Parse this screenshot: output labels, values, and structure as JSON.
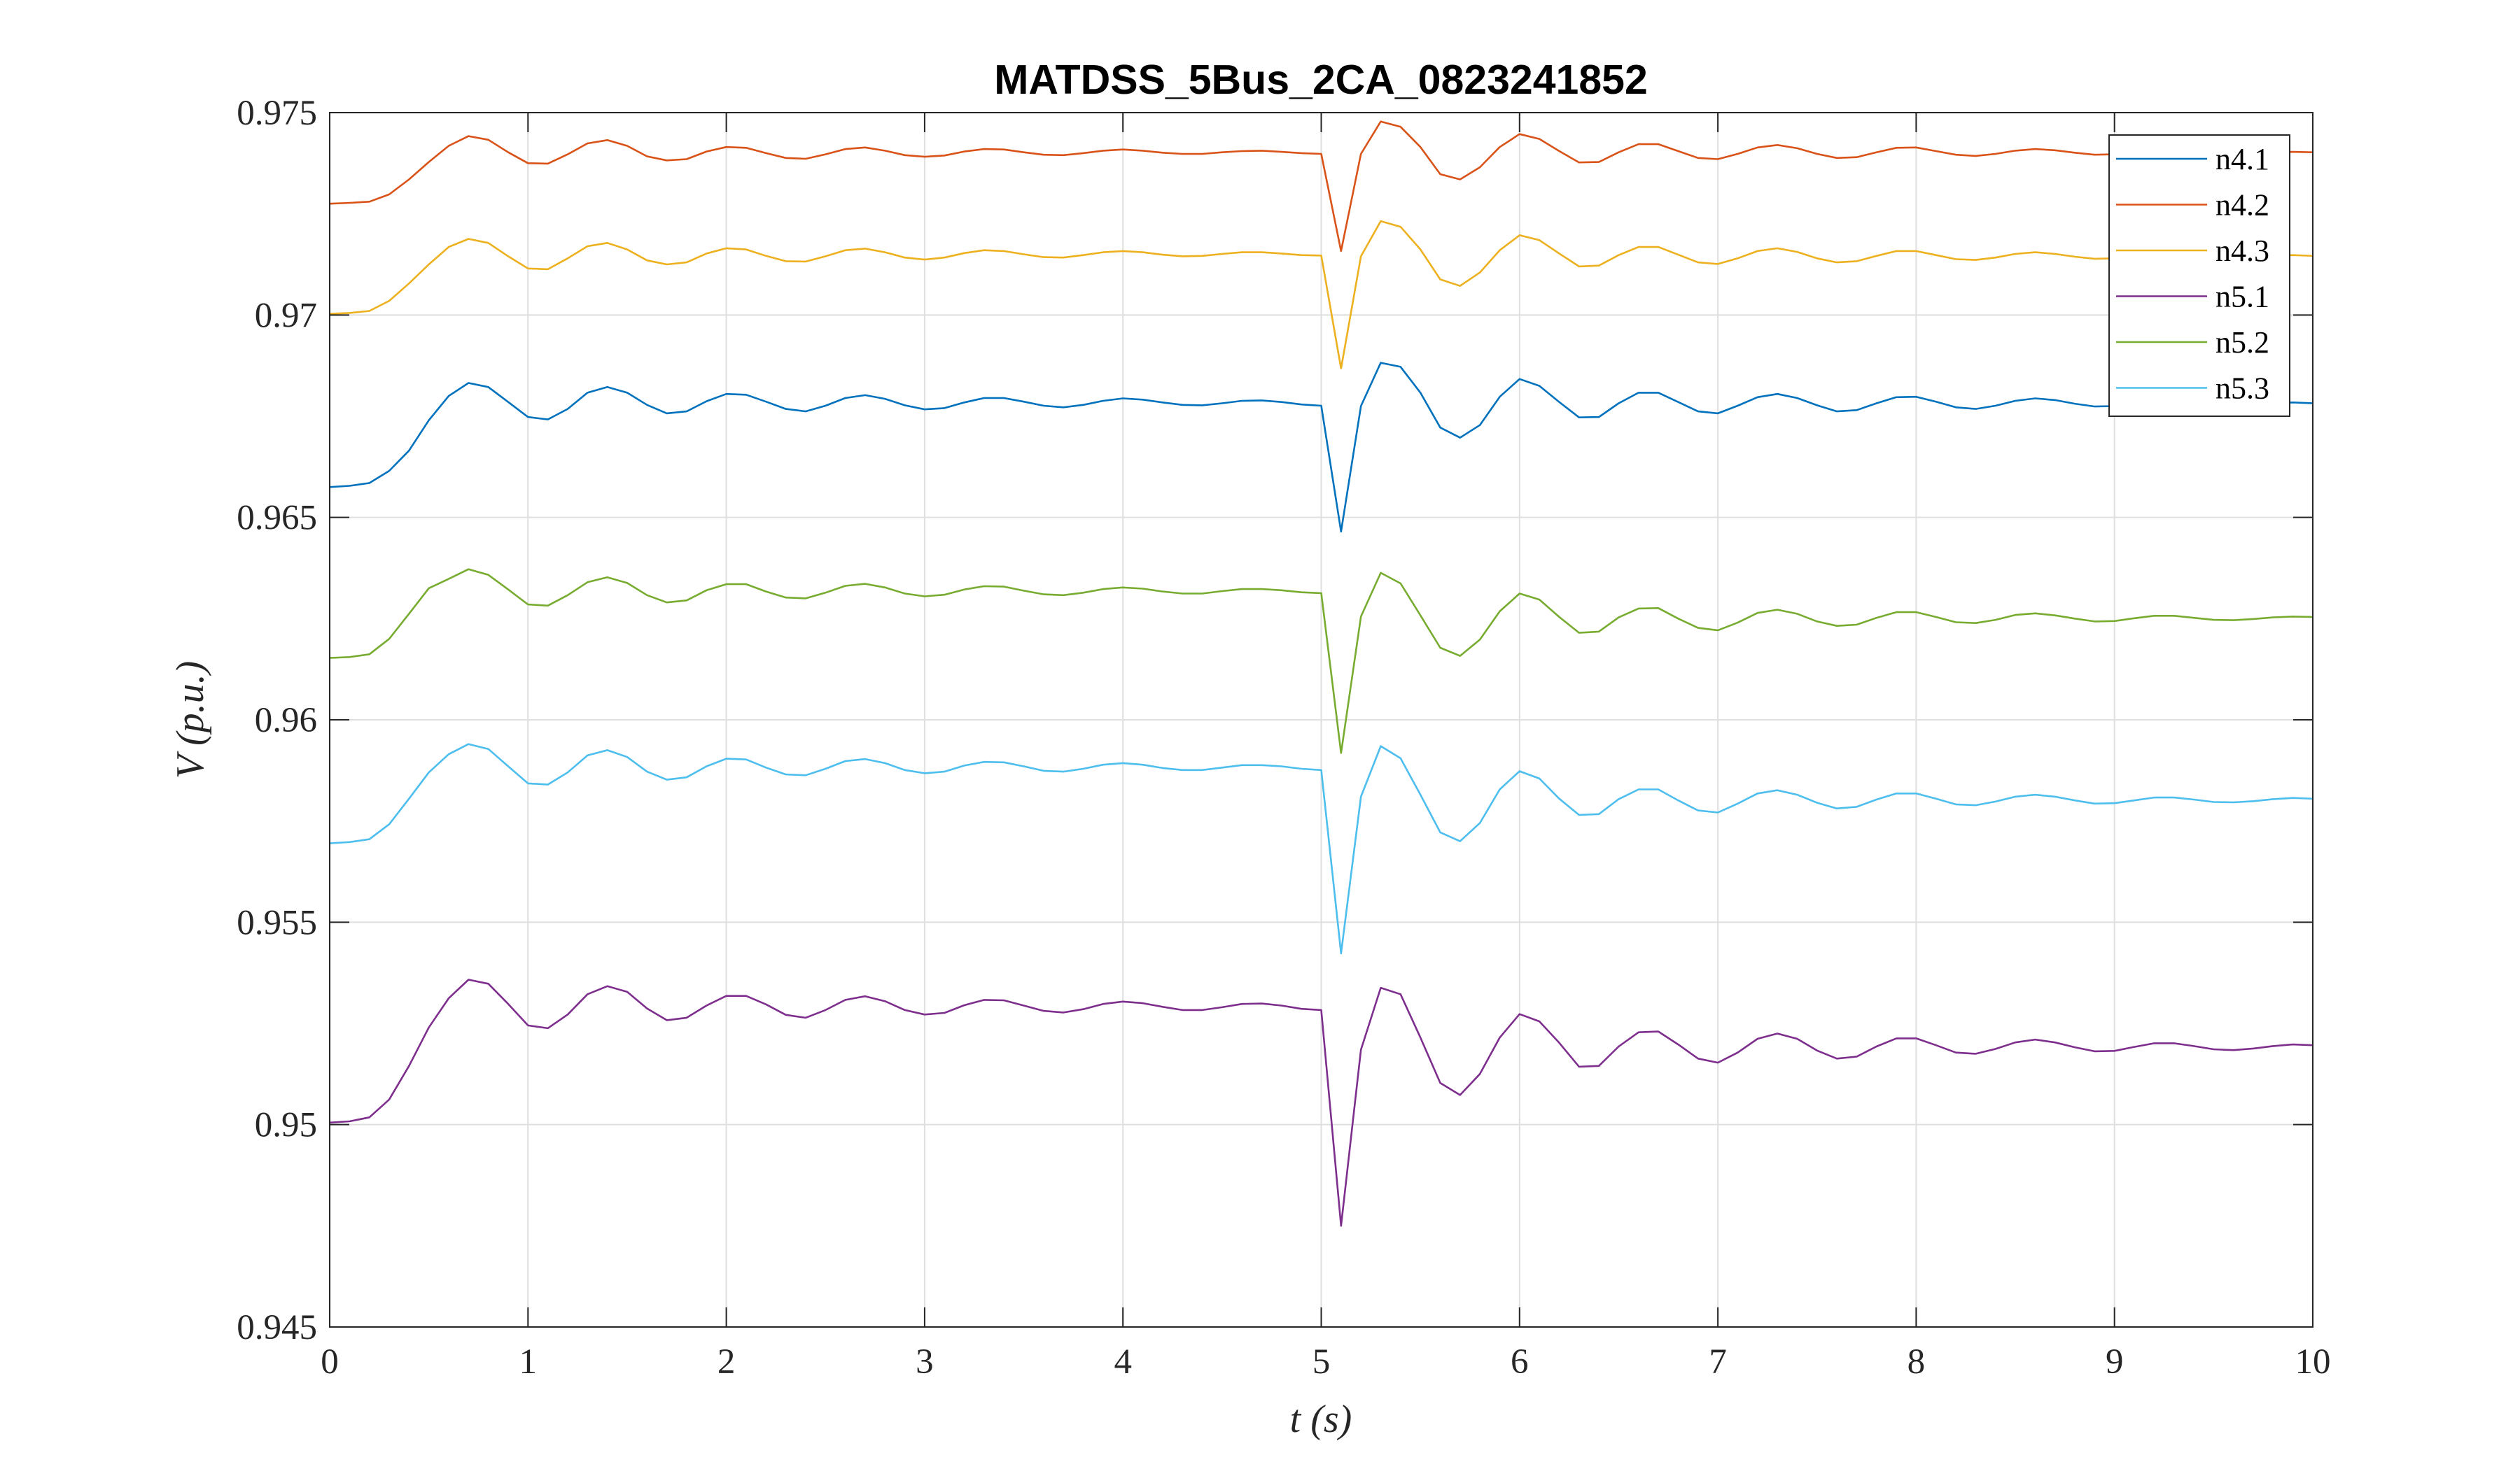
{
  "chart_data": {
    "type": "line",
    "title": "MATDSS_5Bus_2CA_0823241852",
    "xlabel": "t (s)",
    "ylabel": "V (p.u.)",
    "xlim": [
      0,
      10
    ],
    "ylim": [
      0.945,
      0.975
    ],
    "xticks": [
      "0",
      "1",
      "2",
      "3",
      "4",
      "5",
      "6",
      "7",
      "8",
      "9",
      "10"
    ],
    "yticks": [
      "0.945",
      "0.95",
      "0.955",
      "0.96",
      "0.965",
      "0.97",
      "0.975"
    ],
    "grid": true,
    "legend_position": "top-right",
    "x": [
      0,
      0.1,
      0.2,
      0.3,
      0.4,
      0.5,
      0.6,
      0.7,
      0.8,
      0.9,
      1.0,
      1.1,
      1.2,
      1.3,
      1.4,
      1.5,
      1.6,
      1.7,
      1.8,
      1.9,
      2.0,
      2.1,
      2.2,
      2.3,
      2.4,
      2.5,
      2.6,
      2.7,
      2.8,
      2.9,
      3.0,
      3.1,
      3.2,
      3.3,
      3.4,
      3.5,
      3.6,
      3.7,
      3.8,
      3.9,
      4.0,
      4.1,
      4.2,
      4.3,
      4.4,
      4.5,
      4.6,
      4.7,
      4.8,
      4.9,
      5.0,
      5.1,
      5.2,
      5.3,
      5.4,
      5.5,
      5.6,
      5.7,
      5.8,
      5.9,
      6.0,
      6.1,
      6.2,
      6.3,
      6.4,
      6.5,
      6.6,
      6.7,
      6.8,
      6.9,
      7.0,
      7.1,
      7.2,
      7.3,
      7.4,
      7.5,
      7.6,
      7.7,
      7.8,
      7.9,
      8.0,
      8.1,
      8.2,
      8.3,
      8.4,
      8.5,
      8.6,
      8.7,
      8.8,
      8.9,
      9.0,
      9.1,
      9.2,
      9.3,
      9.4,
      9.5,
      9.6,
      9.7,
      9.8,
      9.9,
      10.0
    ],
    "series": [
      {
        "name": "n4.1",
        "color": "#0072BD",
        "values": [
          0.96575,
          0.96578,
          0.96585,
          0.96615,
          0.96665,
          0.9674,
          0.968,
          0.96832,
          0.96822,
          0.96785,
          0.96748,
          0.96742,
          0.96768,
          0.96808,
          0.96822,
          0.96808,
          0.96778,
          0.96757,
          0.96762,
          0.96787,
          0.96805,
          0.96803,
          0.96786,
          0.96768,
          0.96762,
          0.96776,
          0.96795,
          0.96802,
          0.96793,
          0.96777,
          0.96767,
          0.9677,
          0.96784,
          0.96795,
          0.96795,
          0.96786,
          0.96776,
          0.96772,
          0.96778,
          0.96788,
          0.96794,
          0.96791,
          0.96784,
          0.96778,
          0.96777,
          0.96782,
          0.96788,
          0.96789,
          0.96785,
          0.96779,
          0.96776,
          0.96465,
          0.96775,
          0.96882,
          0.96872,
          0.96808,
          0.96722,
          0.96697,
          0.96728,
          0.96798,
          0.96842,
          0.96825,
          0.96785,
          0.96747,
          0.96748,
          0.96782,
          0.96808,
          0.96808,
          0.96785,
          0.96762,
          0.96757,
          0.96776,
          0.96797,
          0.96805,
          0.96795,
          0.96777,
          0.96762,
          0.96765,
          0.96782,
          0.96797,
          0.96798,
          0.96786,
          0.96772,
          0.96768,
          0.96776,
          0.96788,
          0.96794,
          0.9679,
          0.96781,
          0.96774,
          0.96775,
          0.96782,
          0.96788,
          0.96788,
          0.96783,
          0.96778,
          0.96776,
          0.96778,
          0.96782,
          0.96784,
          0.96782
        ]
      },
      {
        "name": "n4.2",
        "color": "#D95319",
        "values": [
          0.97275,
          0.97277,
          0.9728,
          0.97298,
          0.97335,
          0.97378,
          0.97418,
          0.97442,
          0.97433,
          0.97402,
          0.97375,
          0.97374,
          0.97397,
          0.97424,
          0.97432,
          0.97418,
          0.97392,
          0.97382,
          0.97385,
          0.97404,
          0.97415,
          0.97413,
          0.974,
          0.97388,
          0.97386,
          0.97397,
          0.9741,
          0.97414,
          0.97406,
          0.97395,
          0.97391,
          0.97394,
          0.97404,
          0.9741,
          0.97409,
          0.97402,
          0.97396,
          0.97395,
          0.974,
          0.97406,
          0.97409,
          0.97406,
          0.97401,
          0.97398,
          0.97398,
          0.97402,
          0.97405,
          0.97406,
          0.97403,
          0.974,
          0.97398,
          0.97158,
          0.97398,
          0.97478,
          0.97465,
          0.97415,
          0.97348,
          0.97335,
          0.97365,
          0.97415,
          0.97447,
          0.97435,
          0.97405,
          0.97377,
          0.97378,
          0.97402,
          0.97422,
          0.97422,
          0.97405,
          0.97388,
          0.97385,
          0.97398,
          0.97414,
          0.9742,
          0.97412,
          0.97398,
          0.97388,
          0.9739,
          0.97402,
          0.97413,
          0.97414,
          0.97405,
          0.97396,
          0.97393,
          0.97398,
          0.97406,
          0.9741,
          0.97407,
          0.97401,
          0.97396,
          0.97397,
          0.97401,
          0.97405,
          0.97405,
          0.97402,
          0.97399,
          0.97398,
          0.97399,
          0.97402,
          0.97403,
          0.97402
        ]
      },
      {
        "name": "n4.3",
        "color": "#EDB120",
        "values": [
          0.97003,
          0.97005,
          0.9701,
          0.97035,
          0.97078,
          0.97125,
          0.97168,
          0.97188,
          0.97178,
          0.97145,
          0.97115,
          0.97113,
          0.9714,
          0.9717,
          0.97178,
          0.97162,
          0.97135,
          0.97125,
          0.9713,
          0.97152,
          0.97165,
          0.97162,
          0.97146,
          0.97133,
          0.97132,
          0.97145,
          0.9716,
          0.97164,
          0.97155,
          0.97142,
          0.97137,
          0.97142,
          0.97153,
          0.9716,
          0.97158,
          0.9715,
          0.97143,
          0.97142,
          0.97148,
          0.97155,
          0.97158,
          0.97155,
          0.97149,
          0.97145,
          0.97146,
          0.97151,
          0.97155,
          0.97155,
          0.97152,
          0.97148,
          0.97147,
          0.96868,
          0.97145,
          0.97232,
          0.97218,
          0.97162,
          0.97088,
          0.97072,
          0.97105,
          0.9716,
          0.97197,
          0.97185,
          0.97152,
          0.9712,
          0.97122,
          0.97148,
          0.97168,
          0.97168,
          0.97149,
          0.9713,
          0.97126,
          0.9714,
          0.97158,
          0.97165,
          0.97156,
          0.9714,
          0.9713,
          0.97133,
          0.97146,
          0.97158,
          0.97158,
          0.97148,
          0.97138,
          0.97136,
          0.97142,
          0.97151,
          0.97155,
          0.97151,
          0.97144,
          0.97139,
          0.9714,
          0.97145,
          0.97149,
          0.97149,
          0.97146,
          0.97143,
          0.97142,
          0.97143,
          0.97146,
          0.97148,
          0.97146
        ]
      },
      {
        "name": "n5.1",
        "color": "#7E2F8E",
        "values": [
          0.95005,
          0.95008,
          0.95018,
          0.95062,
          0.95145,
          0.9524,
          0.95312,
          0.95358,
          0.95348,
          0.95298,
          0.95245,
          0.95238,
          0.95272,
          0.95322,
          0.95342,
          0.95328,
          0.95287,
          0.95258,
          0.95264,
          0.95294,
          0.95318,
          0.95318,
          0.95297,
          0.95271,
          0.95264,
          0.95283,
          0.95308,
          0.95317,
          0.95305,
          0.95283,
          0.95272,
          0.95276,
          0.95295,
          0.95308,
          0.95307,
          0.95294,
          0.95281,
          0.95277,
          0.95285,
          0.95298,
          0.95304,
          0.953,
          0.95291,
          0.95283,
          0.95283,
          0.9529,
          0.95298,
          0.95299,
          0.95294,
          0.95286,
          0.95283,
          0.9475,
          0.95185,
          0.95338,
          0.95322,
          0.95215,
          0.95103,
          0.95073,
          0.95125,
          0.95215,
          0.95273,
          0.95255,
          0.95202,
          0.95143,
          0.95145,
          0.95193,
          0.95228,
          0.9523,
          0.95198,
          0.95163,
          0.95153,
          0.95178,
          0.95212,
          0.95225,
          0.95212,
          0.95183,
          0.95163,
          0.95168,
          0.95193,
          0.95213,
          0.95213,
          0.95196,
          0.95178,
          0.95175,
          0.95187,
          0.95203,
          0.9521,
          0.95203,
          0.95191,
          0.95181,
          0.95182,
          0.95192,
          0.95201,
          0.95201,
          0.95194,
          0.95186,
          0.95184,
          0.95188,
          0.95194,
          0.95198,
          0.95196
        ]
      },
      {
        "name": "n5.2",
        "color": "#77AC30",
        "values": [
          0.96153,
          0.96155,
          0.96162,
          0.962,
          0.96262,
          0.96325,
          0.96348,
          0.96372,
          0.96358,
          0.96322,
          0.96285,
          0.96282,
          0.96308,
          0.9634,
          0.96352,
          0.96338,
          0.96308,
          0.9629,
          0.96295,
          0.9632,
          0.96335,
          0.96335,
          0.96317,
          0.96302,
          0.963,
          0.96314,
          0.96331,
          0.96336,
          0.96327,
          0.96312,
          0.96305,
          0.96309,
          0.96322,
          0.9633,
          0.96329,
          0.96319,
          0.9631,
          0.96308,
          0.96314,
          0.96323,
          0.96327,
          0.96324,
          0.96317,
          0.96312,
          0.96312,
          0.96318,
          0.96323,
          0.96323,
          0.9632,
          0.96315,
          0.96313,
          0.95918,
          0.96255,
          0.96363,
          0.96337,
          0.96258,
          0.96178,
          0.96158,
          0.96198,
          0.96268,
          0.96312,
          0.96297,
          0.96254,
          0.96215,
          0.96218,
          0.96253,
          0.96275,
          0.96276,
          0.9625,
          0.96227,
          0.96221,
          0.9624,
          0.96264,
          0.96272,
          0.96262,
          0.96243,
          0.96232,
          0.96235,
          0.96252,
          0.96266,
          0.96266,
          0.96254,
          0.96241,
          0.96239,
          0.96247,
          0.96259,
          0.96263,
          0.96258,
          0.9625,
          0.96243,
          0.96244,
          0.96251,
          0.96257,
          0.96257,
          0.96252,
          0.96247,
          0.96246,
          0.96249,
          0.96253,
          0.96255,
          0.96254
        ]
      },
      {
        "name": "n5.3",
        "color": "#4DBEEE",
        "values": [
          0.95695,
          0.95698,
          0.95705,
          0.95742,
          0.95805,
          0.9587,
          0.95915,
          0.9594,
          0.95928,
          0.95885,
          0.95843,
          0.9584,
          0.9587,
          0.95912,
          0.95925,
          0.95908,
          0.95872,
          0.95852,
          0.95858,
          0.95885,
          0.95904,
          0.95902,
          0.95882,
          0.95865,
          0.95863,
          0.95879,
          0.95898,
          0.95903,
          0.95893,
          0.95876,
          0.95868,
          0.95872,
          0.95887,
          0.95896,
          0.95895,
          0.95885,
          0.95874,
          0.95872,
          0.95879,
          0.95889,
          0.95893,
          0.95889,
          0.95881,
          0.95876,
          0.95876,
          0.95882,
          0.95888,
          0.95888,
          0.95885,
          0.95879,
          0.95876,
          0.95423,
          0.9581,
          0.95935,
          0.95905,
          0.95815,
          0.95722,
          0.957,
          0.95745,
          0.95828,
          0.95873,
          0.95855,
          0.95805,
          0.95765,
          0.95767,
          0.95804,
          0.95828,
          0.95828,
          0.95801,
          0.95776,
          0.95771,
          0.95793,
          0.95818,
          0.95826,
          0.95815,
          0.95795,
          0.95781,
          0.95785,
          0.95803,
          0.95818,
          0.95818,
          0.95805,
          0.95791,
          0.95789,
          0.95798,
          0.9581,
          0.95815,
          0.9581,
          0.95801,
          0.95793,
          0.95794,
          0.95801,
          0.95808,
          0.95808,
          0.95803,
          0.95797,
          0.95796,
          0.95799,
          0.95804,
          0.95807,
          0.95805
        ]
      }
    ]
  }
}
